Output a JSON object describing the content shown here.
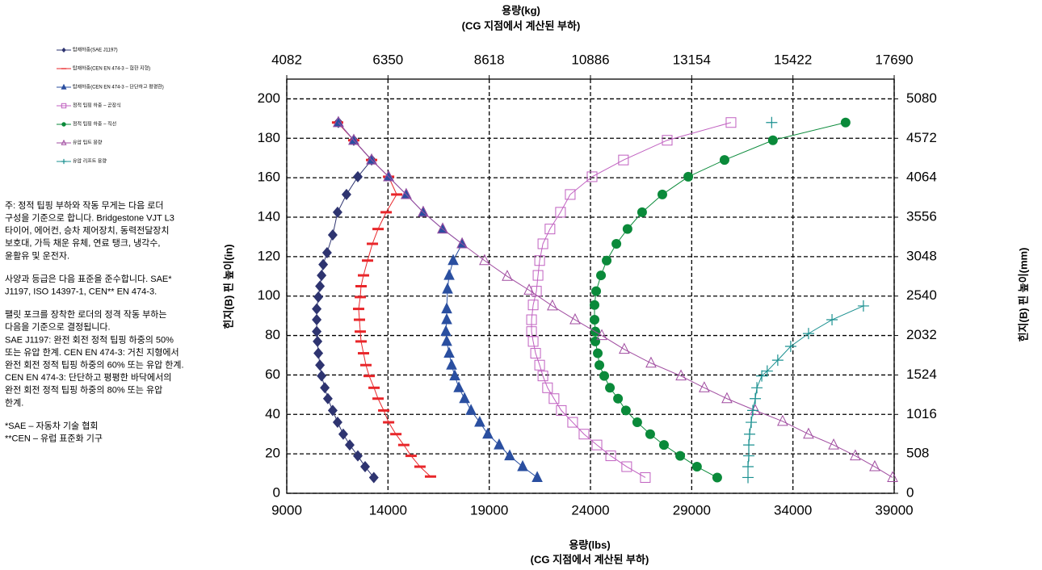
{
  "chart_data": {
    "type": "line",
    "xlabel": [
      "용량(lbs)",
      "(CG 지점에서 계산된 부하)"
    ],
    "x2label": [
      "용량(kg)",
      "(CG 지점에서 계산된 부하)"
    ],
    "ylabel": "힌지(B) 핀 높이(in)",
    "y2label": "힌지(B) 핀 높이(mm)",
    "xlim": [
      9000,
      39000
    ],
    "xticks": [
      9000,
      14000,
      19000,
      24000,
      29000,
      34000,
      39000
    ],
    "x2lim": [
      4082,
      17690
    ],
    "x2ticks": [
      4082,
      6350,
      8618,
      10886,
      13154,
      15422,
      17690
    ],
    "ylim": [
      0,
      210
    ],
    "yticks": [
      0,
      20,
      40,
      60,
      80,
      100,
      120,
      140,
      160,
      180,
      200
    ],
    "y2lim": [
      0,
      5334
    ],
    "y2ticks": [
      0,
      508,
      1016,
      1524,
      2032,
      2540,
      3048,
      3556,
      4064,
      4572,
      5080
    ],
    "grid": true,
    "annotations": [
      [
        "주: 정적 팁핑 부하와 작동 무게는 다음 로더",
        "구성을 기준으로 합니다. Bridgestone VJT L3",
        "타이어, 에어컨, 승차 제어장치, 동력전달장치",
        "보호대, 가득 채운 유체, 연료 탱크, 냉각수,",
        "윤활유 및 운전자."
      ],
      [
        "사양과 등급은 다음 표준을 준수합니다. SAE*",
        "J1197, ISO 14397-1, CEN** EN 474-3."
      ],
      [
        "팰릿 포크를 장착한 로더의 정격 작동 부하는",
        "다음을 기준으로 결정됩니다.",
        "SAE J1197: 완전 회전 정적 팁핑 하중의 50%",
        "또는 유압 한계. CEN EN 474-3: 거친 지형에서",
        "완전 회전 정적 팁핑 하중의 60% 또는 유압 한계.",
        "CEN EN 474-3: 단단하고 평평한 바닥에서의",
        "완전 회전 정적 팁핑 하중의 80% 또는 유압",
        "한계."
      ],
      [
        "*SAE – 자동차 기술 협회",
        "**CEN – 유럽 표준화 기구"
      ]
    ],
    "series": [
      {
        "name": "탑재하중(SAE J1197)",
        "color": "#2e3470",
        "marker": "diamond",
        "x": [
          13300,
          12870,
          12510,
          12110,
          11790,
          11510,
          11270,
          11030,
          10880,
          10720,
          10640,
          10560,
          10520,
          10480,
          10480,
          10480,
          10560,
          10640,
          10720,
          10800,
          10990,
          11270,
          11510,
          11950,
          12510,
          13190,
          12310,
          11550
        ],
        "values": [
          8,
          13.5,
          19,
          24.5,
          30,
          36,
          42,
          48,
          53.5,
          59.5,
          65,
          71,
          77,
          82,
          88,
          93.5,
          99.5,
          105,
          110.5,
          116,
          122,
          131,
          142.5,
          151.5,
          160.5,
          169,
          179,
          188
        ]
      },
      {
        "name": "탑재하중(CEN EN 474-3 – 험한 지형)",
        "color": "#e8262a",
        "marker": "dash",
        "x": [
          16100,
          15580,
          15140,
          14780,
          14390,
          14030,
          13790,
          13510,
          13310,
          13070,
          12910,
          12790,
          12670,
          12630,
          12590,
          12550,
          12630,
          12670,
          12790,
          12990,
          13230,
          13510,
          13910,
          14430,
          14030,
          13190,
          12310,
          11510
        ],
        "values": [
          8.5,
          13.5,
          19,
          24.5,
          30,
          36,
          42,
          48,
          53.5,
          59.5,
          65,
          71,
          77,
          82,
          88,
          93.5,
          99.5,
          105,
          110.5,
          118,
          126.5,
          134,
          142.5,
          151.5,
          160.5,
          169,
          179,
          188
        ]
      },
      {
        "name": "탑재하중(CEN EN 474-3 – 단단하고 평평한)",
        "color": "#2a4fa0",
        "marker": "triangle",
        "x": [
          21370,
          20650,
          20010,
          19490,
          18930,
          18530,
          18100,
          17780,
          17500,
          17300,
          17140,
          17020,
          16900,
          16860,
          16900,
          16900,
          16940,
          17020,
          17220,
          17660,
          16700,
          15740,
          14900,
          14030,
          13190,
          12310,
          11550
        ],
        "values": [
          8,
          13.5,
          19,
          24.5,
          30,
          36,
          42,
          48,
          53.5,
          59.5,
          65,
          71,
          77,
          82,
          88,
          93.5,
          103.5,
          110.5,
          118,
          126.5,
          134,
          142.5,
          151.5,
          160.5,
          169,
          179,
          188
        ]
      },
      {
        "name": "정적 팁핑 하중 – 곧장식",
        "color": "#c060c0",
        "marker": "square-open",
        "x": [
          26710,
          25790,
          25000,
          24320,
          23680,
          23120,
          22560,
          22200,
          21880,
          21650,
          21490,
          21290,
          21170,
          21090,
          21090,
          21170,
          21330,
          21410,
          21490,
          21650,
          22000,
          22520,
          23000,
          24080,
          25630,
          27790,
          30940
        ],
        "values": [
          8,
          13.5,
          19,
          24.5,
          30,
          36,
          42,
          48,
          53.5,
          59.5,
          65,
          71,
          77,
          82,
          88,
          95.5,
          102.5,
          110.5,
          118,
          126.5,
          134,
          142.5,
          151.5,
          160.5,
          169,
          179,
          188
        ]
      },
      {
        "name": "정적 팁핑 하중 – 직선",
        "color": "#0a8a3a",
        "marker": "circle",
        "x": [
          30260,
          29260,
          28430,
          27630,
          26950,
          26310,
          25750,
          25360,
          24960,
          24680,
          24440,
          24360,
          24240,
          24240,
          24200,
          24200,
          24280,
          24520,
          24800,
          25280,
          25830,
          26550,
          27550,
          28830,
          30620,
          33010,
          36600
        ],
        "values": [
          8,
          13.5,
          19,
          24.5,
          30,
          36,
          42,
          48,
          53.5,
          59.5,
          65,
          71,
          77,
          82,
          88,
          95.5,
          102.5,
          110.5,
          118,
          126.5,
          134,
          142.5,
          151.5,
          160.5,
          169,
          179,
          188
        ]
      },
      {
        "name": "유압 팁트 용량",
        "color": "#a04ca0",
        "marker": "triangle-open",
        "x": [
          38920,
          38040,
          37080,
          36010,
          34770,
          33490,
          32140,
          30740,
          29620,
          28470,
          26990,
          25670,
          24560,
          23240,
          22120,
          20970,
          19890,
          18770,
          17660,
          16700,
          15740,
          14900,
          14030,
          13190,
          12310,
          11550
        ],
        "values": [
          8,
          13.5,
          19,
          24.5,
          30,
          36.5,
          42,
          48,
          53.5,
          59.5,
          66,
          73,
          80,
          88,
          95,
          103,
          110,
          118,
          126.5,
          134,
          142.5,
          151.5,
          160.5,
          169,
          179,
          188
        ]
      },
      {
        "name": "유압 리프트 용량",
        "color": "#1a9090",
        "marker": "plus",
        "x": [
          31780,
          31780,
          31820,
          31820,
          31860,
          31940,
          32020,
          32140,
          32220,
          32460,
          32730,
          33250,
          33890,
          34770,
          35930,
          37480,
          null,
          32950
        ],
        "values": [
          8,
          13.5,
          19,
          24.5,
          30,
          36,
          42,
          48,
          53.5,
          59.5,
          62,
          67.5,
          74.5,
          81,
          88,
          95,
          null,
          188
        ]
      }
    ]
  }
}
